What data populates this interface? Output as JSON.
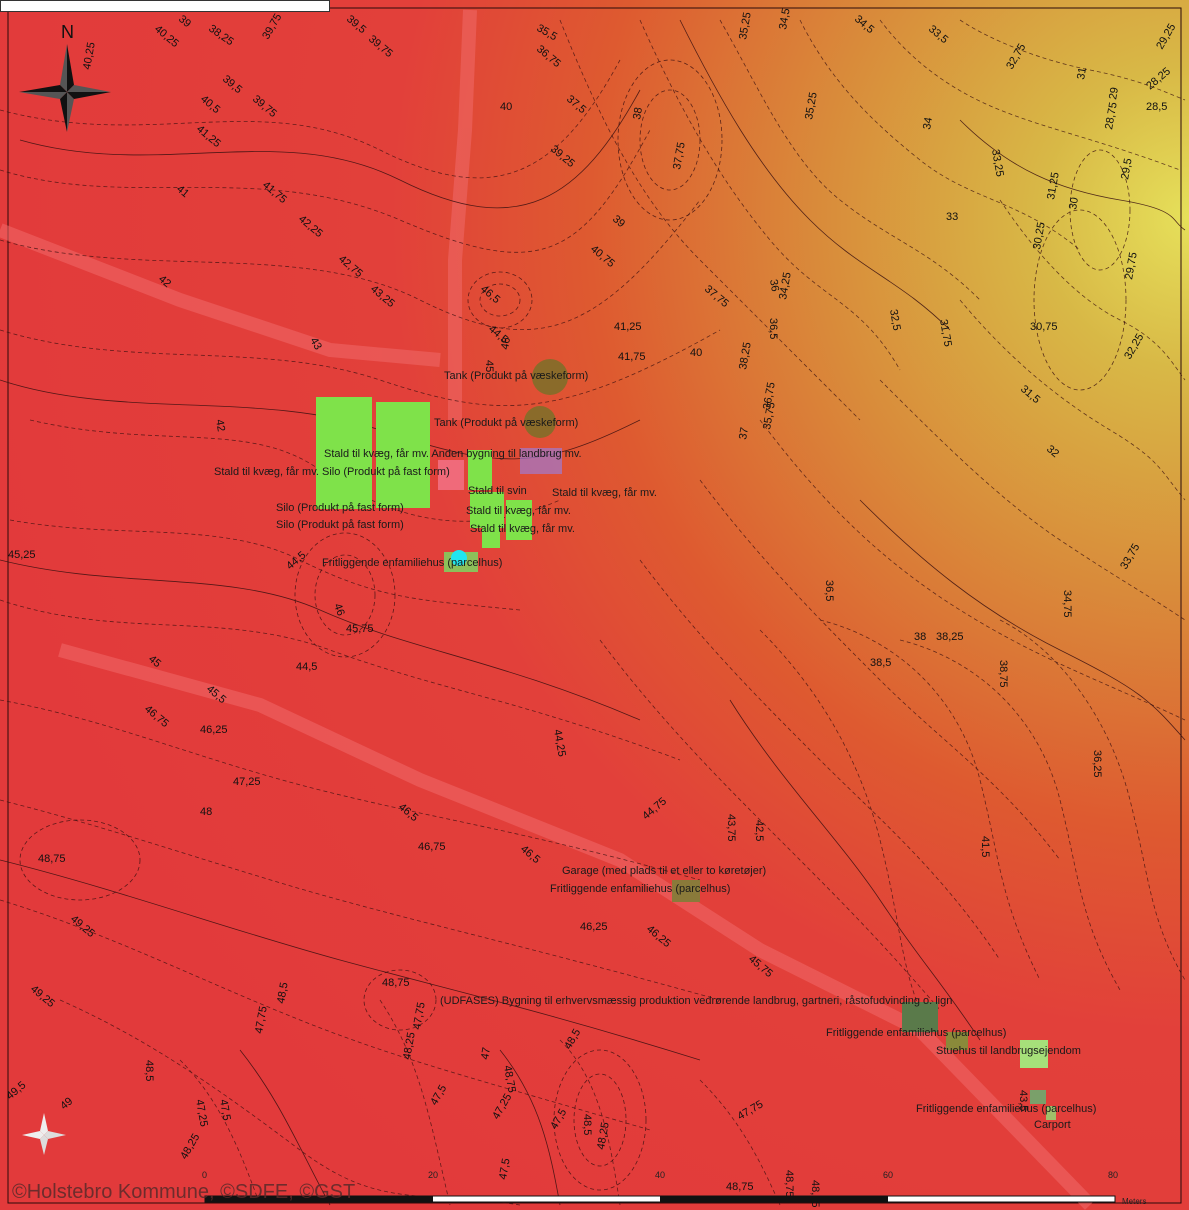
{
  "north_label": "N",
  "copyright": "©Holstebro Kommune, ©SDFE, ©GST",
  "scale": {
    "ticks": [
      "0",
      "20",
      "40",
      "60",
      "80"
    ],
    "unit": "Meters"
  },
  "colors": {
    "low_elevation": "#e3c24a",
    "mid_elevation": "#e0662a",
    "high_elevation": "#e4393a",
    "building_fill": "#7fe24a",
    "tank_fill": "#8a6b2a",
    "marker": "#1fe6f0"
  },
  "building_labels": [
    "Tank (Produkt på væskeform)",
    "Tank (Produkt på væskeform)",
    "Stald til kvæg, får mv. Anden bygning til landbrug mv.",
    "Stald til kvæg, får mv. Silo (Produkt på fast form)",
    "Stald til svin",
    "Stald til kvæg, får mv.",
    "Silo (Produkt på fast form)",
    "Stald til kvæg, får mv.",
    "Silo (Produkt på fast form)",
    "Stald til kvæg, får mv.",
    "Fritliggende enfamiliehus (parcelhus)",
    "Garage (med plads til et eller to køretøjer)",
    "Fritliggende enfamiliehus (parcelhus)",
    "(UDFASES) Bygning til erhvervsmæssig produktion vedrørende landbrug, gartneri, råstofudvinding o. lign",
    "Fritliggende enfamiliehus (parcelhus)",
    "Stuehus til landbrugsejendom",
    "Fritliggende enfamiliehus (parcelhus)",
    "Carport"
  ],
  "contour_labels": [
    "39",
    "38,25",
    "39,75",
    "39,5",
    "39,75",
    "35,5",
    "35,25",
    "34,5",
    "34,5",
    "33,5",
    "32,75",
    "29,25",
    "40,25",
    "40,25",
    "36,75",
    "37,5",
    "28,25",
    "28,5",
    "31",
    "29",
    "28,75",
    "39,5",
    "39,75",
    "40,5",
    "41,25",
    "40",
    "38",
    "37,75",
    "35,25",
    "34",
    "33,25",
    "39,25",
    "29,5",
    "41",
    "41,75",
    "42,25",
    "39",
    "33",
    "31,25",
    "30",
    "30,25",
    "42",
    "42,75",
    "43,25",
    "40,75",
    "37,75",
    "36",
    "34,25",
    "32,5",
    "29,75",
    "46,5",
    "44,5",
    "43",
    "41,25",
    "41,75",
    "40",
    "36,5",
    "31,75",
    "30,75",
    "45",
    "46",
    "42",
    "38,25",
    "36,75",
    "32,25",
    "37",
    "35,75",
    "31,5",
    "32",
    "45,25",
    "44,5",
    "46",
    "45,75",
    "36,5",
    "38",
    "38,25",
    "34,75",
    "33,75",
    "44,5",
    "45",
    "45,5",
    "38,5",
    "38,75",
    "46,75",
    "46,25",
    "44,25",
    "36,25",
    "47,25",
    "48",
    "46,5",
    "44,75",
    "43,75",
    "42,5",
    "46,75",
    "48,75",
    "41,5",
    "46,5",
    "49,25",
    "46,25",
    "46,25",
    "45,75",
    "49,25",
    "48,75",
    "47,75",
    "48,5",
    "47,75",
    "48,25",
    "47",
    "48,75",
    "48,5",
    "47,25",
    "47,5",
    "47,5",
    "49,5",
    "48,25",
    "48,5",
    "47,25",
    "47,5",
    "48,25",
    "48,5",
    "47,75",
    "48,75",
    "49",
    "47,5",
    "48,75",
    "48,25",
    "43,5"
  ]
}
